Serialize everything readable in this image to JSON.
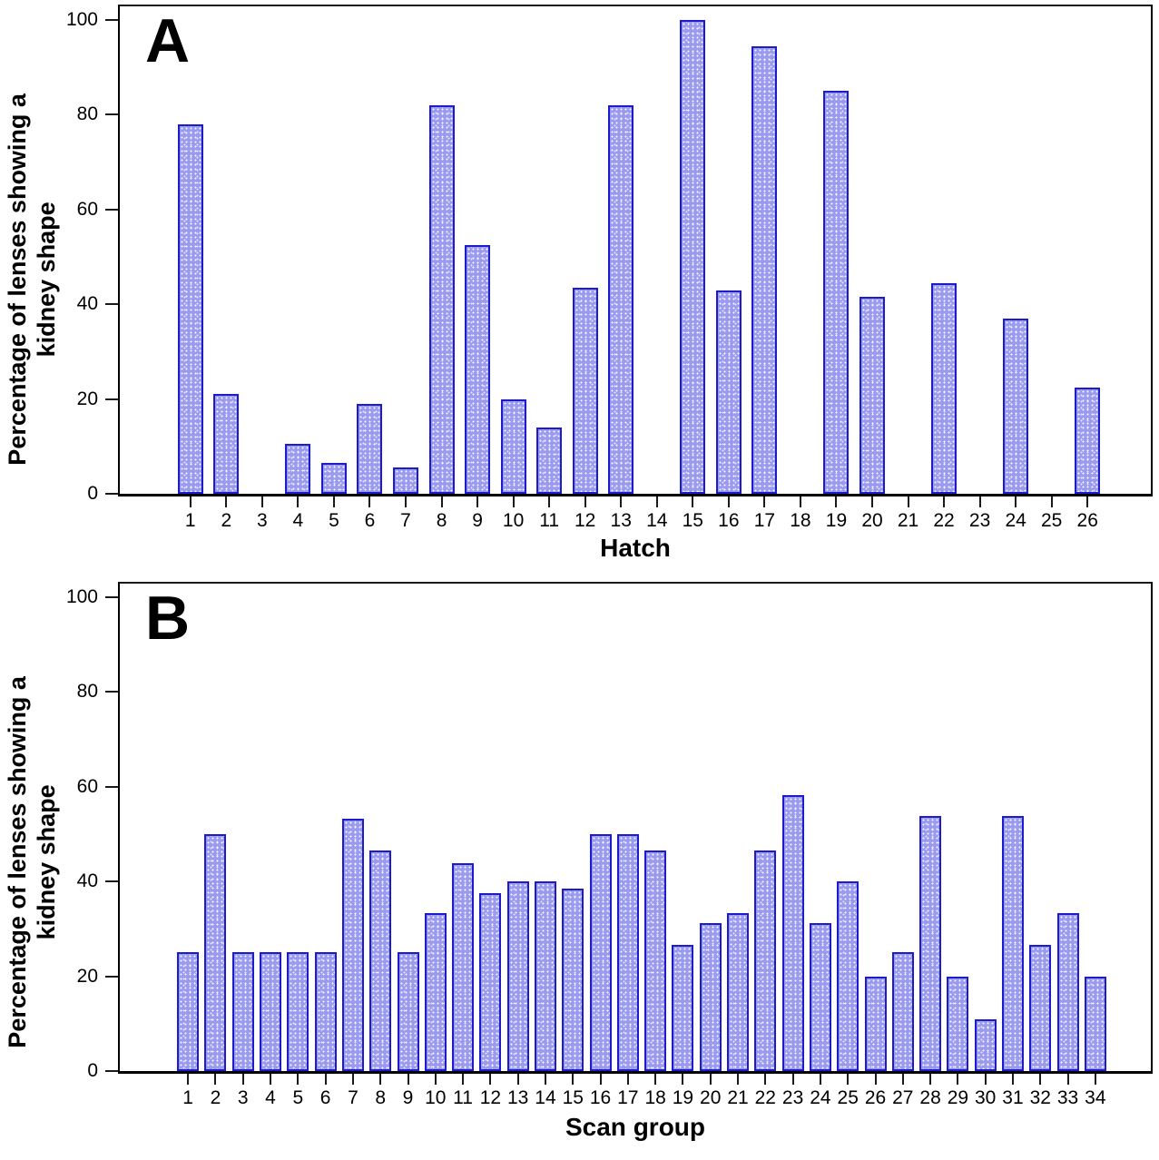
{
  "figure": {
    "background": "#ffffff",
    "bar_fill": "#9a9aef",
    "bar_stipple": "#ffffff",
    "bar_border": "#1c1ccd",
    "axis_color": "#000000",
    "text_color": "#000000"
  },
  "chart_data": [
    {
      "type": "bar",
      "panel_letter": "A",
      "title": "",
      "xlabel": "Hatch",
      "ylabel_line1": "Percentage of lenses showing a",
      "ylabel_line2": "kidney shape",
      "ylim": [
        0,
        100
      ],
      "yticks": [
        0,
        20,
        40,
        60,
        80,
        100
      ],
      "grid": false,
      "legend": null,
      "categories": [
        "1",
        "2",
        "3",
        "4",
        "5",
        "6",
        "7",
        "8",
        "9",
        "10",
        "11",
        "12",
        "13",
        "14",
        "15",
        "16",
        "17",
        "18",
        "19",
        "20",
        "21",
        "22",
        "23",
        "24",
        "25",
        "26"
      ],
      "values": [
        78,
        21,
        0,
        10.5,
        6.5,
        19,
        5.5,
        82,
        52.5,
        20,
        14,
        43.5,
        82,
        0,
        100,
        43,
        94.5,
        0,
        85,
        41.5,
        0,
        44.5,
        0,
        37,
        0,
        22.5
      ]
    },
    {
      "type": "bar",
      "panel_letter": "B",
      "title": "",
      "xlabel": "Scan group",
      "ylabel_line1": "Percentage of lenses showing a",
      "ylabel_line2": "kidney shape",
      "ylim": [
        0,
        100
      ],
      "yticks": [
        0,
        20,
        40,
        60,
        80,
        100
      ],
      "grid": false,
      "legend": null,
      "categories": [
        "1",
        "2",
        "3",
        "4",
        "5",
        "6",
        "7",
        "8",
        "9",
        "10",
        "11",
        "12",
        "13",
        "14",
        "15",
        "16",
        "17",
        "18",
        "19",
        "20",
        "21",
        "22",
        "23",
        "24",
        "25",
        "26",
        "27",
        "28",
        "29",
        "30",
        "31",
        "32",
        "33",
        "34"
      ],
      "values": [
        25,
        50,
        25,
        25,
        25,
        25,
        53.3,
        46.5,
        25,
        33.3,
        43.8,
        37.5,
        40,
        40,
        38.5,
        50,
        50,
        46.5,
        26.7,
        31.3,
        33.3,
        46.5,
        58.3,
        31.3,
        40,
        20,
        25,
        53.8,
        20,
        11,
        53.8,
        26.7,
        33.3,
        20
      ]
    }
  ]
}
